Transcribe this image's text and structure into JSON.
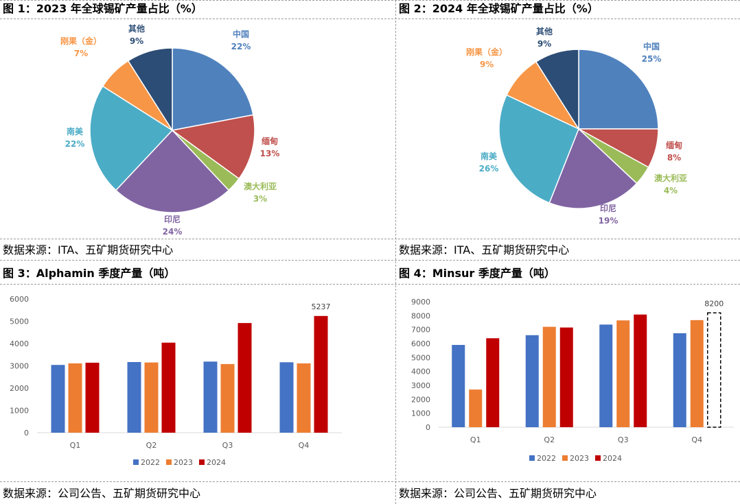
{
  "panels": [
    {
      "title": "图 1：2023 年全球锡矿产量占比（%）",
      "source": "数据来源：ITA、五矿期货研究中心"
    },
    {
      "title": "图 2：2024 年全球锡矿产量占比（%）",
      "source": "数据来源：ITA、五矿期货研究中心"
    },
    {
      "title": "图 3：Alphamin 季度产量（吨）",
      "source": "数据来源：公司公告、五矿期货研究中心"
    },
    {
      "title": "图 4：Minsur 季度产量（吨）",
      "source": "数据来源：公司公告、五矿期货研究中心"
    }
  ],
  "chart_data": [
    {
      "type": "pie",
      "title": "",
      "slices": [
        {
          "label": "中国",
          "value": 22,
          "value_text": "22%",
          "color": "#4f81bd"
        },
        {
          "label": "缅甸",
          "value": 13,
          "value_text": "13%",
          "color": "#c0504d"
        },
        {
          "label": "澳大利亚",
          "value": 3,
          "value_text": "3%",
          "color": "#9bbb59"
        },
        {
          "label": "印尼",
          "value": 24,
          "value_text": "24%",
          "color": "#8064a2"
        },
        {
          "label": "南美",
          "value": 22,
          "value_text": "22%",
          "color": "#4bacc6"
        },
        {
          "label": "刚果（金）",
          "value": 7,
          "value_text": "7%",
          "color": "#f79646"
        },
        {
          "label": "其他",
          "value": 9,
          "value_text": "9%",
          "color": "#2c4d75"
        }
      ]
    },
    {
      "type": "pie",
      "title": "",
      "slices": [
        {
          "label": "中国",
          "value": 25,
          "value_text": "25%",
          "color": "#4f81bd"
        },
        {
          "label": "缅甸",
          "value": 8,
          "value_text": "8%",
          "color": "#c0504d"
        },
        {
          "label": "澳大利亚",
          "value": 4,
          "value_text": "4%",
          "color": "#9bbb59"
        },
        {
          "label": "印尼",
          "value": 19,
          "value_text": "19%",
          "color": "#8064a2"
        },
        {
          "label": "南美",
          "value": 26,
          "value_text": "26%",
          "color": "#4bacc6"
        },
        {
          "label": "刚果（金）",
          "value": 9,
          "value_text": "9%",
          "color": "#f79646"
        },
        {
          "label": "其他",
          "value": 9,
          "value_text": "9%",
          "color": "#2c4d75"
        }
      ]
    },
    {
      "type": "bar",
      "title": "",
      "categories": [
        "Q1",
        "Q2",
        "Q3",
        "Q4"
      ],
      "series": [
        {
          "name": "2022",
          "color": "#4472c4",
          "values": [
            3040,
            3170,
            3190,
            3160
          ]
        },
        {
          "name": "2023",
          "color": "#ed7d31",
          "values": [
            3110,
            3150,
            3080,
            3110
          ]
        },
        {
          "name": "2024",
          "color": "#c00000",
          "values": [
            3140,
            4040,
            4920,
            5237
          ]
        }
      ],
      "yticks": [
        "0",
        "1000",
        "2000",
        "3000",
        "4000",
        "5000",
        "6000"
      ],
      "ylim": [
        0,
        6000
      ],
      "annotations": [
        {
          "series": 2,
          "category": 3,
          "text": "5237"
        }
      ],
      "legend": "bottom"
    },
    {
      "type": "bar",
      "title": "",
      "categories": [
        "Q1",
        "Q2",
        "Q3",
        "Q4"
      ],
      "series": [
        {
          "name": "2022",
          "color": "#4472c4",
          "values": [
            5900,
            6600,
            7360,
            6740
          ]
        },
        {
          "name": "2023",
          "color": "#ed7d31",
          "values": [
            2700,
            7200,
            7660,
            7680
          ]
        },
        {
          "name": "2024",
          "color": "#c00000",
          "values": [
            6380,
            7150,
            8080,
            8200
          ]
        }
      ],
      "dashed_bars": [
        {
          "series": 2,
          "category": 3
        }
      ],
      "yticks": [
        "0",
        "1000",
        "2000",
        "3000",
        "4000",
        "5000",
        "6000",
        "7000",
        "8000",
        "9000"
      ],
      "ylim": [
        0,
        9000
      ],
      "annotations": [
        {
          "series": 2,
          "category": 3,
          "text": "8200"
        }
      ],
      "legend": "bottom"
    }
  ]
}
